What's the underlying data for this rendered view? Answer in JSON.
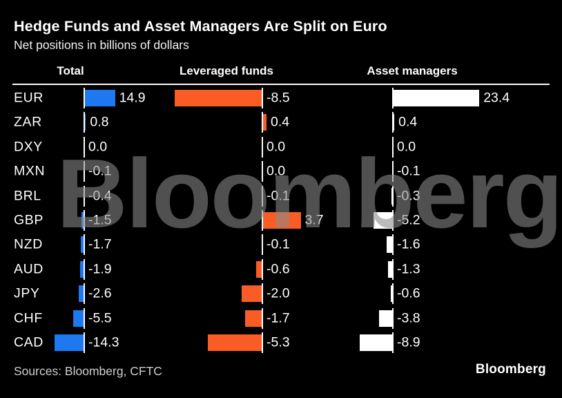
{
  "title": "Hedge Funds and Asset Managers Are Split on Euro",
  "subtitle": "Net positions in billions of dollars",
  "watermark": "Bloomberg",
  "source_note": "Sources: Bloomberg, CFTC",
  "brand_logo": "Bloomberg",
  "colors": {
    "background": "#000000",
    "total_bar": "#1e79f0",
    "leveraged_bar": "#fa5c26",
    "asset_bar": "#ffffff",
    "axis_tick": "#ffffff",
    "text": "#ffffff",
    "muted_text": "#cfcfcf",
    "watermark": "#8b8b8b"
  },
  "chart_data": {
    "type": "bar",
    "orientation": "horizontal",
    "title": "Hedge Funds and Asset Managers Are Split on Euro",
    "subtitle": "Net positions in billions of dollars",
    "unit": "billions of dollars",
    "grid": false,
    "legend_position": "column-headers-top",
    "categories": [
      "EUR",
      "ZAR",
      "DXY",
      "MXN",
      "BRL",
      "GBP",
      "NZD",
      "AUD",
      "JPY",
      "CHF",
      "CAD"
    ],
    "series": [
      {
        "name": "Total",
        "color": "#1e79f0",
        "values": [
          14.9,
          0.8,
          0.0,
          -0.1,
          -0.4,
          -1.5,
          -1.7,
          -1.9,
          -2.6,
          -5.5,
          -14.3
        ]
      },
      {
        "name": "Leveraged funds",
        "color": "#fa5c26",
        "values": [
          -8.5,
          0.4,
          0.0,
          0.0,
          -0.1,
          3.7,
          -0.1,
          -0.6,
          -2.0,
          -1.7,
          -5.3
        ]
      },
      {
        "name": "Asset managers",
        "color": "#ffffff",
        "values": [
          23.4,
          0.4,
          0.0,
          -0.1,
          -0.3,
          -5.2,
          -1.6,
          -1.3,
          -0.6,
          -3.8,
          -8.9
        ]
      }
    ]
  }
}
